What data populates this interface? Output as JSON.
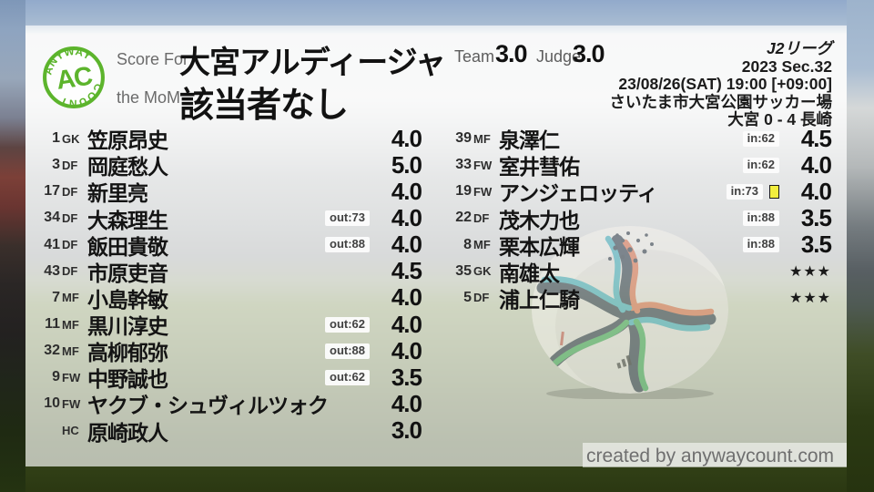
{
  "logo": {
    "arc_top": "ANYWAY",
    "center": "AC",
    "arc_bottom": "COUNT"
  },
  "header": {
    "score_for_label": "Score For",
    "team_name": "大宮アルディージャ",
    "mom_label": "the MoM",
    "mom_name": "該当者なし",
    "team_label": "Team",
    "team_score": "3.0",
    "judge_label": "Judge",
    "judge_score": "3.0"
  },
  "match_info": {
    "league": "J2リーグ",
    "season": "2023 Sec.32",
    "datetime": "23/08/26(SAT) 19:00 [+09:00]",
    "venue": "さいたま市大宮公園サッカー場",
    "result": "大宮 0 - 4 長崎"
  },
  "players_left": [
    {
      "num": "1",
      "pos": "GK",
      "name": "笠原昂史",
      "rating": "4.0"
    },
    {
      "num": "3",
      "pos": "DF",
      "name": "岡庭愁人",
      "rating": "5.0"
    },
    {
      "num": "17",
      "pos": "DF",
      "name": "新里亮",
      "rating": "4.0"
    },
    {
      "num": "34",
      "pos": "DF",
      "name": "大森理生",
      "sub": "out:73",
      "rating": "4.0"
    },
    {
      "num": "41",
      "pos": "DF",
      "name": "飯田貴敬",
      "sub": "out:88",
      "rating": "4.0"
    },
    {
      "num": "43",
      "pos": "DF",
      "name": "市原吏音",
      "rating": "4.5"
    },
    {
      "num": "7",
      "pos": "MF",
      "name": "小島幹敏",
      "rating": "4.0"
    },
    {
      "num": "11",
      "pos": "MF",
      "name": "黒川淳史",
      "sub": "out:62",
      "rating": "4.0"
    },
    {
      "num": "32",
      "pos": "MF",
      "name": "高柳郁弥",
      "sub": "out:88",
      "rating": "4.0"
    },
    {
      "num": "9",
      "pos": "FW",
      "name": "中野誠也",
      "sub": "out:62",
      "rating": "3.5"
    },
    {
      "num": "10",
      "pos": "FW",
      "name": "ヤクブ・シュヴィルツォク",
      "rating": "4.0"
    },
    {
      "num": "",
      "pos": "HC",
      "name": "原崎政人",
      "rating": "3.0"
    }
  ],
  "players_right": [
    {
      "num": "39",
      "pos": "MF",
      "name": "泉澤仁",
      "sub": "in:62",
      "rating": "4.5"
    },
    {
      "num": "33",
      "pos": "FW",
      "name": "室井彗佑",
      "sub": "in:62",
      "rating": "4.0"
    },
    {
      "num": "19",
      "pos": "FW",
      "name": "アンジェロッティ",
      "sub": "in:73",
      "card": "yellow",
      "rating": "4.0"
    },
    {
      "num": "22",
      "pos": "DF",
      "name": "茂木力也",
      "sub": "in:88",
      "rating": "3.5"
    },
    {
      "num": "8",
      "pos": "MF",
      "name": "栗本広輝",
      "sub": "in:88",
      "rating": "3.5"
    },
    {
      "num": "35",
      "pos": "GK",
      "name": "南雄太",
      "rating": "★★★",
      "stars": true
    },
    {
      "num": "5",
      "pos": "DF",
      "name": "浦上仁騎",
      "rating": "★★★",
      "stars": true
    }
  ],
  "footer": {
    "credit": "created by anywaycount.com"
  },
  "colors": {
    "logo_green": "#5cb42c",
    "yellow_card": "#f2ee3e",
    "badge_bg": "#fbfbfb",
    "text_dark": "#141414"
  }
}
